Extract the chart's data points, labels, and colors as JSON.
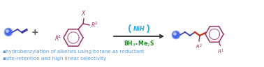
{
  "bg_color": "#ffffff",
  "bullet_text_color": "#5b9bd5",
  "bullet1": "hydrobenzylation of alkenes using borane as reductant",
  "bullet2": "site-retention and high linear selectivity",
  "arrow_color": "#303030",
  "ni_color": "#29aae1",
  "bh3_color": "#228B22",
  "chain_color": "#3333aa",
  "benzyl_color": "#993366",
  "product_red": "#cc2200",
  "sphere_color": "#4466ee",
  "figsize": [
    3.78,
    0.96
  ],
  "dpi": 100,
  "plus_color": "#555555",
  "r_color": "#993366",
  "x_color": "#993366"
}
